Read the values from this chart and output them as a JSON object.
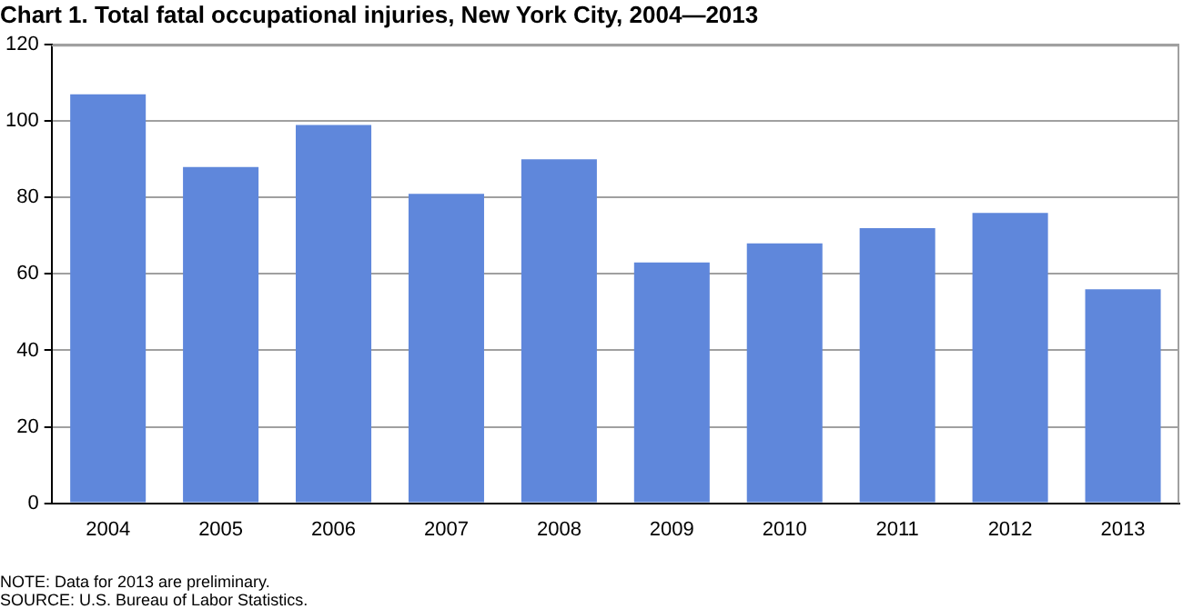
{
  "chart_data": {
    "type": "bar",
    "title": "Chart 1. Total fatal occupational injuries, New York City, 2004—2013",
    "categories": [
      "2004",
      "2005",
      "2006",
      "2007",
      "2008",
      "2009",
      "2010",
      "2011",
      "2012",
      "2013"
    ],
    "values": [
      107,
      88,
      99,
      81,
      90,
      63,
      68,
      72,
      76,
      56
    ],
    "color": "#5f87db",
    "ylim": [
      0,
      120
    ],
    "yticks": [
      0,
      20,
      40,
      60,
      80,
      100,
      120
    ],
    "grid": "y",
    "legend": false,
    "annotations": [
      "NOTE: Data for 2013 are preliminary.",
      "SOURCE: U.S. Bureau of Labor Statistics."
    ]
  }
}
